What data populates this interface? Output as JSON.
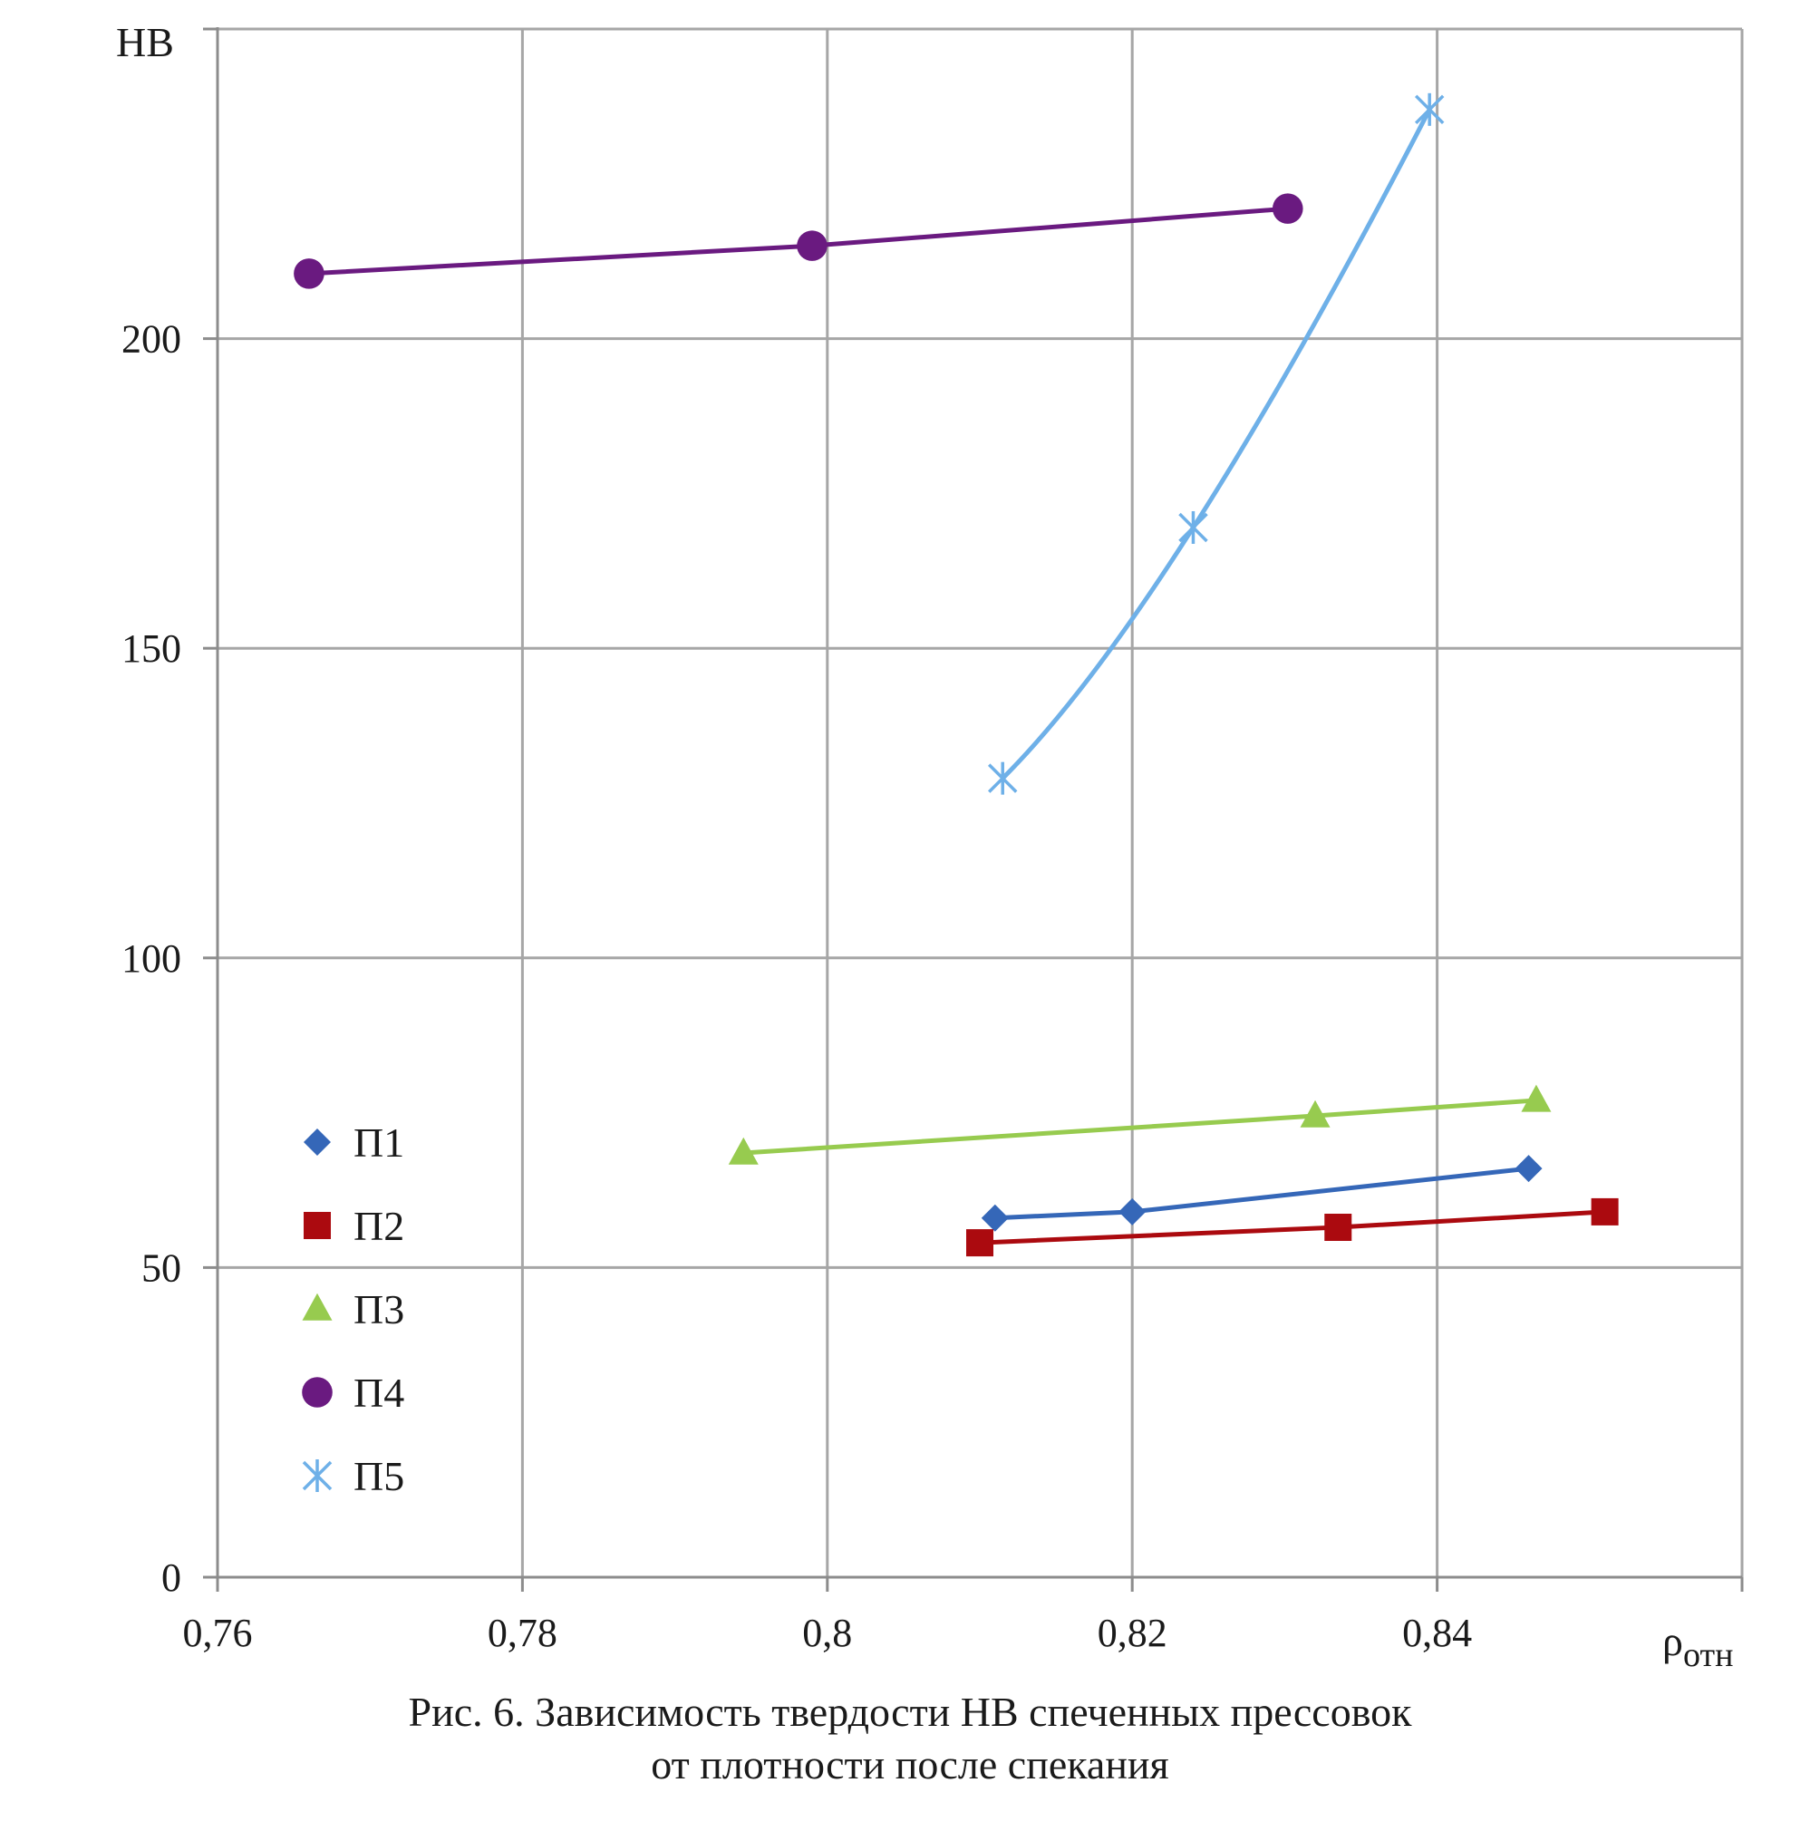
{
  "chart_data": {
    "type": "line",
    "title": "",
    "ylabel": "HB",
    "xlabel_main": "ρ",
    "xlabel_sub": "отн",
    "xlim": [
      0.76,
      0.86
    ],
    "ylim": [
      0,
      250
    ],
    "x_ticks": [
      0.76,
      0.78,
      0.8,
      0.82,
      0.84,
      0.86
    ],
    "x_tick_labels": [
      "0,76",
      "0,78",
      "0,8",
      "0,82",
      "0,84",
      ""
    ],
    "y_ticks": [
      0,
      50,
      100,
      150,
      200,
      250
    ],
    "y_tick_labels": [
      "0",
      "50",
      "100",
      "150",
      "200",
      ""
    ],
    "grid": true,
    "legend_position": "left",
    "series": [
      {
        "name": "П1",
        "marker": "diamond",
        "color": "#3567b8",
        "smooth": false,
        "points": [
          [
            0.811,
            58
          ],
          [
            0.82,
            59
          ],
          [
            0.846,
            66
          ]
        ]
      },
      {
        "name": "П2",
        "marker": "square",
        "color": "#ab0a0f",
        "smooth": false,
        "points": [
          [
            0.81,
            54
          ],
          [
            0.8335,
            56.5
          ],
          [
            0.851,
            59
          ]
        ]
      },
      {
        "name": "П3",
        "marker": "triangle",
        "color": "#97cb4f",
        "smooth": false,
        "points": [
          [
            0.7945,
            68.5
          ],
          [
            0.832,
            74.5
          ],
          [
            0.8465,
            77
          ]
        ]
      },
      {
        "name": "П4",
        "marker": "circle",
        "color": "#6a1a80",
        "smooth": false,
        "points": [
          [
            0.766,
            210.5
          ],
          [
            0.799,
            215
          ],
          [
            0.8302,
            221
          ]
        ]
      },
      {
        "name": "П5",
        "marker": "star",
        "color": "#6eb0e8",
        "smooth": true,
        "points": [
          [
            0.8115,
            129
          ],
          [
            0.824,
            169.5
          ],
          [
            0.8395,
            237
          ]
        ]
      }
    ]
  },
  "caption": {
    "line1": "Рис. 6. Зависимость твердости HB спеченных прессовок",
    "line2": "от плотности после спекания"
  }
}
